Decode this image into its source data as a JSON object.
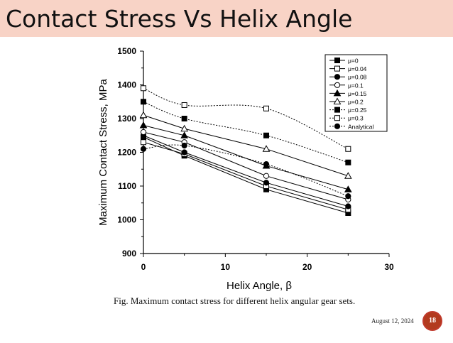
{
  "slide": {
    "title": "Contact Stress Vs Helix Angle",
    "caption": "Fig. Maximum contact stress for different helix angular gear sets.",
    "date": "August 12, 2024",
    "page_number": "18",
    "title_bg_color": "#f8d3c6",
    "accent_color": "#b23a1e"
  },
  "chart_data": {
    "type": "line",
    "title": "",
    "xlabel": "Helix Angle, β",
    "ylabel": "Maximum Contact Stress, MPa",
    "xlim": [
      0,
      30
    ],
    "ylim": [
      900,
      1500
    ],
    "x_ticks": [
      0,
      10,
      20,
      30
    ],
    "y_ticks": [
      900,
      1000,
      1100,
      1200,
      1300,
      1400,
      1500
    ],
    "grid": false,
    "legend_position": "top-right",
    "series": [
      {
        "name": "μ=0",
        "marker": "square-filled",
        "dash": "solid",
        "smooth": false,
        "x": [
          0,
          5,
          15,
          25
        ],
        "values": [
          1245,
          1190,
          1090,
          1020
        ]
      },
      {
        "name": "μ=0.04",
        "marker": "square-open",
        "dash": "solid",
        "smooth": false,
        "x": [
          0,
          5,
          15,
          25
        ],
        "values": [
          1230,
          1195,
          1100,
          1030
        ]
      },
      {
        "name": "μ=0.08",
        "marker": "circle-filled",
        "dash": "solid",
        "smooth": false,
        "x": [
          0,
          5,
          15,
          25
        ],
        "values": [
          1250,
          1200,
          1110,
          1040
        ]
      },
      {
        "name": "μ=0.1",
        "marker": "circle-open",
        "dash": "solid",
        "smooth": false,
        "x": [
          0,
          5,
          15,
          25
        ],
        "values": [
          1260,
          1230,
          1130,
          1060
        ]
      },
      {
        "name": "μ=0.15",
        "marker": "triangle-filled",
        "dash": "solid",
        "smooth": false,
        "x": [
          0,
          5,
          15,
          25
        ],
        "values": [
          1280,
          1250,
          1160,
          1090
        ]
      },
      {
        "name": "μ=0.2",
        "marker": "triangle-open",
        "dash": "solid",
        "smooth": false,
        "x": [
          0,
          5,
          15,
          25
        ],
        "values": [
          1310,
          1270,
          1210,
          1130
        ]
      },
      {
        "name": "μ=0.25",
        "marker": "square-filled",
        "dash": "dotted",
        "smooth": true,
        "x": [
          0,
          5,
          15,
          25
        ],
        "values": [
          1350,
          1300,
          1250,
          1170
        ]
      },
      {
        "name": "μ=0.3",
        "marker": "square-open",
        "dash": "dotted",
        "smooth": true,
        "x": [
          0,
          5,
          15,
          25
        ],
        "values": [
          1390,
          1340,
          1330,
          1210
        ]
      },
      {
        "name": "Analytical",
        "marker": "circle-filled",
        "dash": "dotted",
        "smooth": true,
        "x": [
          0,
          5,
          15,
          25
        ],
        "values": [
          1210,
          1220,
          1165,
          1070
        ]
      }
    ]
  }
}
